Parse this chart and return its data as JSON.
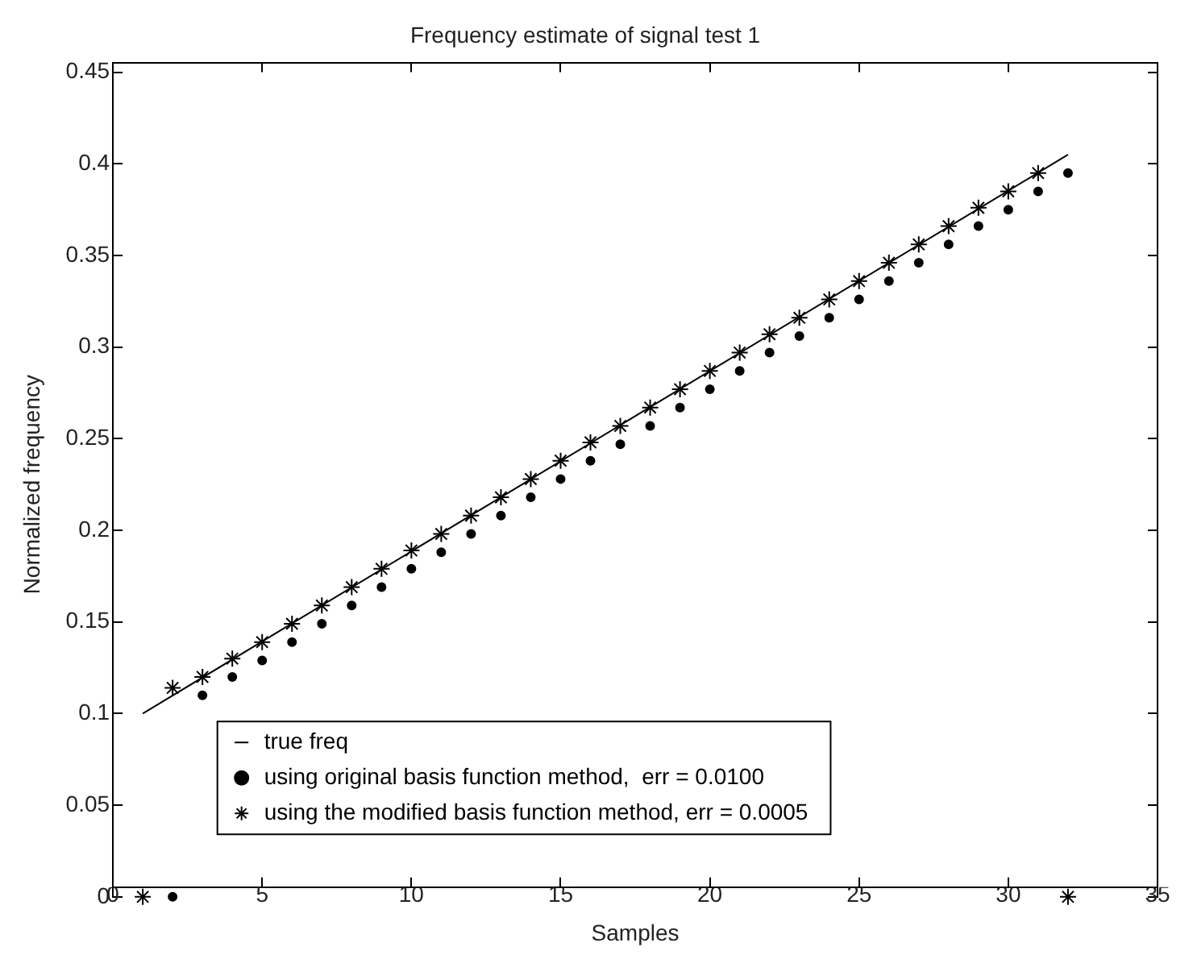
{
  "chart_data": {
    "type": "line",
    "title": "Frequency estimate of signal test 1",
    "xlabel": "Samples",
    "ylabel": "Normalized frequency",
    "xlim": [
      0,
      35
    ],
    "xticks": [
      0,
      5,
      10,
      15,
      20,
      25,
      30,
      35
    ],
    "ylim": [
      0,
      0.45
    ],
    "yticks": [
      0,
      0.05,
      0.1,
      0.15,
      0.2,
      0.25,
      0.3,
      0.35,
      0.4,
      0.45
    ],
    "grid": false,
    "legend": "bottom",
    "series": [
      {
        "name": "true freq",
        "color": "#000000",
        "marker": "none",
        "line_style": "solid",
        "x": [
          1,
          32
        ],
        "values": [
          0.1,
          0.405
        ]
      },
      {
        "name": "using original basis function method,  err = 0.0100",
        "type": "scatter",
        "color": "#000000",
        "marker": "circle",
        "x": [
          2,
          3,
          4,
          5,
          6,
          7,
          8,
          9,
          10,
          11,
          12,
          13,
          14,
          15,
          16,
          17,
          18,
          19,
          20,
          21,
          22,
          23,
          24,
          25,
          26,
          27,
          28,
          29,
          30,
          31,
          32
        ],
        "values": [
          0,
          0.11,
          0.12,
          0.129,
          0.139,
          0.149,
          0.159,
          0.169,
          0.179,
          0.188,
          0.198,
          0.208,
          0.218,
          0.228,
          0.238,
          0.247,
          0.257,
          0.267,
          0.277,
          0.287,
          0.297,
          0.306,
          0.316,
          0.326,
          0.336,
          0.346,
          0.356,
          0.366,
          0.375,
          0.385,
          0.395
        ]
      },
      {
        "name": "using the modified basis function method, err = 0.0005",
        "type": "scatter",
        "color": "#000000",
        "marker": "cross",
        "x": [
          1,
          2,
          3,
          4,
          5,
          6,
          7,
          8,
          9,
          10,
          11,
          12,
          13,
          14,
          15,
          16,
          17,
          18,
          19,
          20,
          21,
          22,
          23,
          24,
          25,
          26,
          27,
          28,
          29,
          30,
          31,
          32
        ],
        "values": [
          0,
          0.114,
          0.12,
          0.13,
          0.139,
          0.149,
          0.159,
          0.169,
          0.179,
          0.189,
          0.198,
          0.208,
          0.218,
          0.228,
          0.238,
          0.248,
          0.257,
          0.267,
          0.277,
          0.287,
          0.297,
          0.307,
          0.316,
          0.326,
          0.336,
          0.346,
          0.356,
          0.366,
          0.376,
          0.385,
          0.395,
          0
        ]
      }
    ]
  }
}
